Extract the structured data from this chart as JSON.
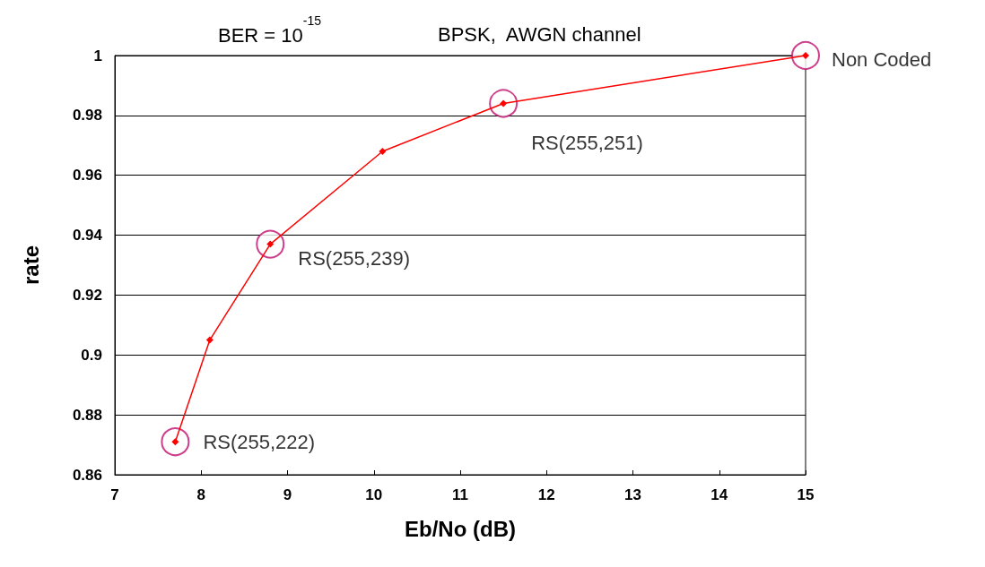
{
  "chart_data": {
    "type": "line",
    "title": "BPSK,  AWGN channel",
    "xlabel": "Eb/No (dB)",
    "ylabel": "rate",
    "annotations": [
      "BER = 10$^{-15}$",
      {
        "text": "RS(255,222)",
        "x": 7.7,
        "y": 0.871
      },
      {
        "text": "RS(255,239)",
        "x": 8.8,
        "y": 0.937
      },
      {
        "text": "RS(255,251)",
        "x": 11.5,
        "y": 0.984
      },
      {
        "text": "Non Coded",
        "x": 15,
        "y": 1
      }
    ],
    "series": [
      {
        "color": "#ff0000",
        "marker": "diamond",
        "line_style": "solid",
        "x": [
          7.7,
          8.1,
          8.8,
          10.1,
          11.5,
          15
        ],
        "values": [
          0.871,
          0.905,
          0.937,
          0.968,
          0.984,
          1
        ]
      },
      {
        "type": "scatter",
        "color": "#c0106e",
        "marker": "circle",
        "x": [
          7.7,
          8.8,
          11.5,
          15
        ],
        "values": [
          0.871,
          0.937,
          0.984,
          1
        ]
      }
    ],
    "xlim": [
      7,
      15
    ],
    "xticks": [
      7,
      8,
      9,
      10,
      11,
      12,
      13,
      14,
      15
    ],
    "ylim": [
      0.86,
      1
    ],
    "yticks": [
      0.86,
      0.88,
      0.9,
      0.92,
      0.94,
      0.96,
      0.98,
      1
    ],
    "grid": "y"
  }
}
